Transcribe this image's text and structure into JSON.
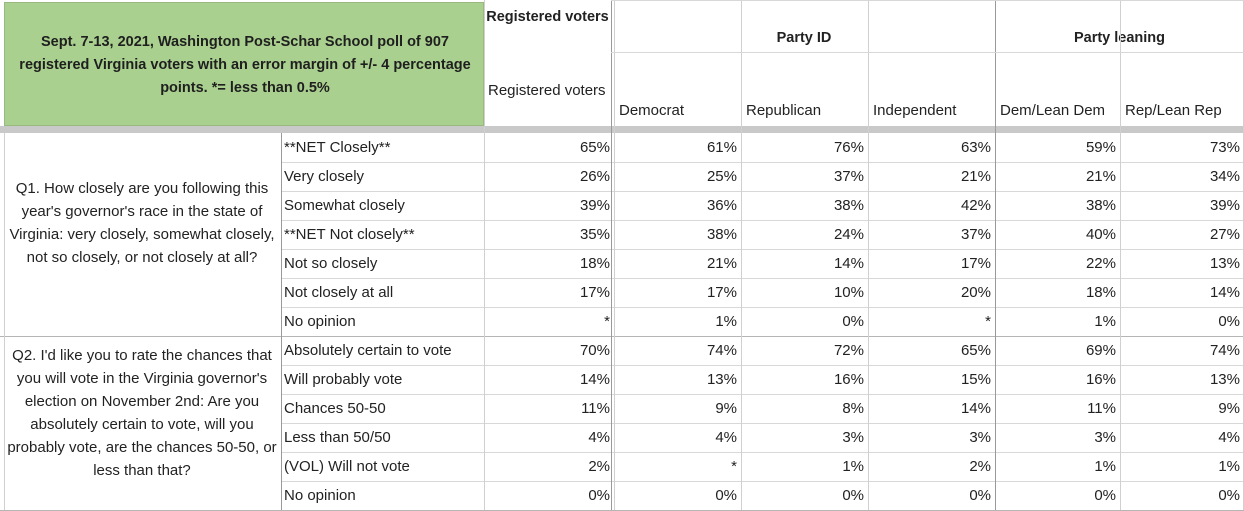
{
  "title": "Sept. 7-13, 2021, Washington Post-Schar School poll of 907 registered Virginia voters with an error margin of +/- 4 percentage points. *= less than 0.5%",
  "groups": {
    "registered": "Registered voters",
    "party_id": "Party ID",
    "party_leaning": "Party leaning"
  },
  "columns": [
    "Registered voters",
    "Democrat",
    "Republican",
    "Independent",
    "Dem/Lean Dem",
    "Rep/Lean Rep"
  ],
  "questions": [
    {
      "text": "Q1. How closely are you following this year's governor's race in the state of Virginia: very closely, somewhat closely, not so closely, or not closely at all?",
      "rows": [
        {
          "label": "**NET Closely**",
          "values": [
            "65%",
            "61%",
            "76%",
            "63%",
            "59%",
            "73%"
          ]
        },
        {
          "label": "Very closely",
          "values": [
            "26%",
            "25%",
            "37%",
            "21%",
            "21%",
            "34%"
          ]
        },
        {
          "label": "Somewhat closely",
          "values": [
            "39%",
            "36%",
            "38%",
            "42%",
            "38%",
            "39%"
          ]
        },
        {
          "label": "**NET Not closely**",
          "values": [
            "35%",
            "38%",
            "24%",
            "37%",
            "40%",
            "27%"
          ]
        },
        {
          "label": "Not so closely",
          "values": [
            "18%",
            "21%",
            "14%",
            "17%",
            "22%",
            "13%"
          ]
        },
        {
          "label": "Not closely at all",
          "values": [
            "17%",
            "17%",
            "10%",
            "20%",
            "18%",
            "14%"
          ]
        },
        {
          "label": "No opinion",
          "values": [
            "*",
            "1%",
            "0%",
            "*",
            "1%",
            "0%"
          ]
        }
      ]
    },
    {
      "text": "Q2. I'd like you to rate the chances that you will vote in the Virginia governor's election on November 2nd: Are you absolutely certain to vote, will you probably vote, are the chances 50-50, or less than that?",
      "rows": [
        {
          "label": "Absolutely certain to vote",
          "values": [
            "70%",
            "74%",
            "72%",
            "65%",
            "69%",
            "74%"
          ]
        },
        {
          "label": "Will probably vote",
          "values": [
            "14%",
            "13%",
            "16%",
            "15%",
            "16%",
            "13%"
          ]
        },
        {
          "label": "Chances 50-50",
          "values": [
            "11%",
            "9%",
            "8%",
            "14%",
            "11%",
            "9%"
          ]
        },
        {
          "label": "Less than 50/50",
          "values": [
            "4%",
            "4%",
            "3%",
            "3%",
            "3%",
            "4%"
          ]
        },
        {
          "label": "(VOL) Will not vote",
          "values": [
            "2%",
            "*",
            "1%",
            "2%",
            "1%",
            "1%"
          ]
        },
        {
          "label": "No opinion",
          "values": [
            "0%",
            "0%",
            "0%",
            "0%",
            "0%",
            "0%"
          ]
        }
      ]
    }
  ]
}
